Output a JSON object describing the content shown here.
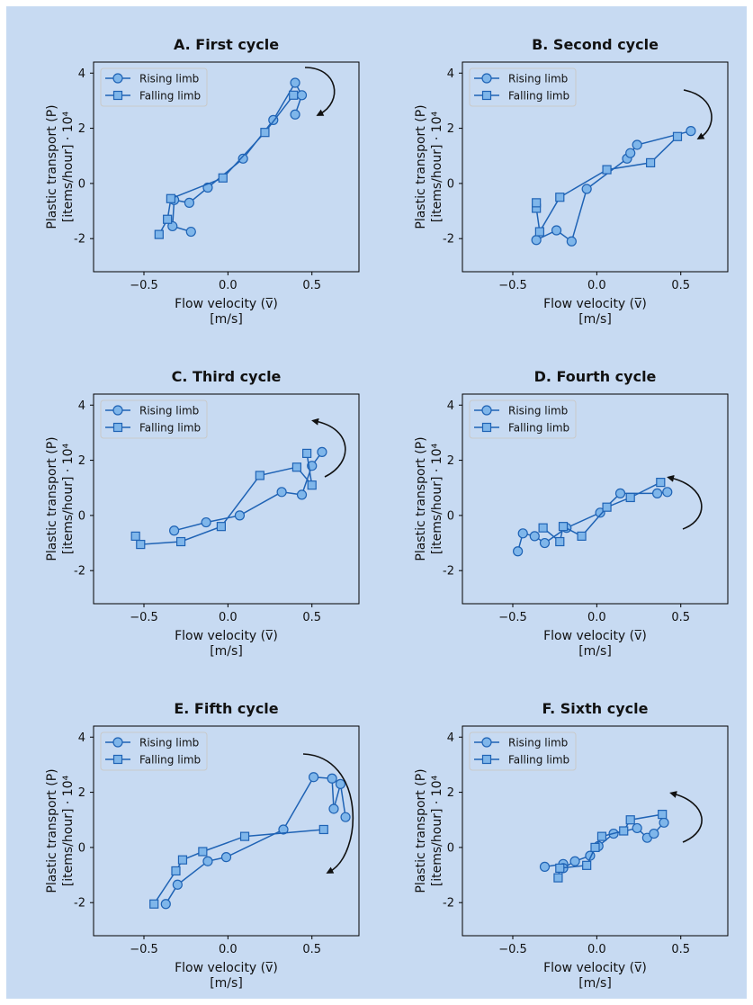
{
  "figure_background": "#c7daf2",
  "line_color": "#1f63b5",
  "marker_fill": "#7fb6ea",
  "arrow_color": "#111111",
  "chart_data": [
    {
      "type": "scatter",
      "title": "A. First cycle",
      "xlabel_line1": "Flow velocity (v̅)",
      "xlabel_line2": "[m/s]",
      "ylabel_line1": "Plastic transport (P)",
      "ylabel_line2": "[items/hour] · 10⁴",
      "xlim": [
        -0.8,
        0.78
      ],
      "ylim": [
        -3.2,
        4.4
      ],
      "xticks": [
        -0.5,
        0.0,
        0.5
      ],
      "xtick_labels": [
        "−0.5",
        "0.0",
        "0.5"
      ],
      "yticks": [
        -2,
        0,
        2,
        4
      ],
      "ytick_labels": [
        "-2",
        "0",
        "2",
        "4"
      ],
      "legend_position": "upper-left",
      "arrow": "clockwise",
      "series": [
        {
          "name": "Rising limb",
          "marker": "circle",
          "x": [
            -0.22,
            -0.33,
            -0.32,
            -0.23,
            -0.12,
            0.09,
            0.27,
            0.4,
            0.44,
            0.4
          ],
          "y": [
            -1.75,
            -1.55,
            -0.6,
            -0.7,
            -0.15,
            0.9,
            2.3,
            3.65,
            3.2,
            2.5
          ]
        },
        {
          "name": "Falling limb",
          "marker": "square",
          "x": [
            0.39,
            0.22,
            -0.03,
            -0.34,
            -0.36,
            -0.41
          ],
          "y": [
            3.2,
            1.85,
            0.2,
            -0.55,
            -1.3,
            -1.85
          ]
        }
      ]
    },
    {
      "type": "scatter",
      "title": "B. Second cycle",
      "xlabel_line1": "Flow velocity (v̅)",
      "xlabel_line2": "[m/s]",
      "ylabel_line1": "Plastic transport (P)",
      "ylabel_line2": "[items/hour] · 10⁴",
      "xlim": [
        -0.8,
        0.78
      ],
      "ylim": [
        -3.2,
        4.4
      ],
      "xticks": [
        -0.5,
        0.0,
        0.5
      ],
      "xtick_labels": [
        "−0.5",
        "0.0",
        "0.5"
      ],
      "yticks": [
        -2,
        0,
        2,
        4
      ],
      "ytick_labels": [
        "-2",
        "0",
        "2",
        "4"
      ],
      "legend_position": "upper-left",
      "arrow": "clockwise",
      "series": [
        {
          "name": "Rising limb",
          "marker": "circle",
          "x": [
            -0.36,
            -0.24,
            -0.15,
            -0.06,
            0.18,
            0.2,
            0.24,
            0.56
          ],
          "y": [
            -2.05,
            -1.7,
            -2.1,
            -0.2,
            0.9,
            1.1,
            1.4,
            1.9
          ]
        },
        {
          "name": "Falling limb",
          "marker": "square",
          "x": [
            0.48,
            0.32,
            0.06,
            -0.22,
            -0.34,
            -0.36,
            -0.36
          ],
          "y": [
            1.7,
            0.75,
            0.5,
            -0.5,
            -1.75,
            -0.9,
            -0.7
          ]
        }
      ]
    },
    {
      "type": "scatter",
      "title": "C. Third cycle",
      "xlabel_line1": "Flow velocity (v̅)",
      "xlabel_line2": "[m/s]",
      "ylabel_line1": "Plastic transport (P)",
      "ylabel_line2": "[items/hour] · 10⁴",
      "xlim": [
        -0.8,
        0.78
      ],
      "ylim": [
        -3.2,
        4.4
      ],
      "xticks": [
        -0.5,
        0.0,
        0.5
      ],
      "xtick_labels": [
        "−0.5",
        "0.0",
        "0.5"
      ],
      "yticks": [
        -2,
        0,
        2,
        4
      ],
      "ytick_labels": [
        "-2",
        "0",
        "2",
        "4"
      ],
      "legend_position": "upper-left",
      "arrow": "counterclockwise",
      "series": [
        {
          "name": "Rising limb",
          "marker": "circle",
          "x": [
            -0.32,
            -0.13,
            0.07,
            0.32,
            0.44,
            0.5,
            0.56
          ],
          "y": [
            -0.55,
            -0.25,
            0.0,
            0.85,
            0.75,
            1.8,
            2.3
          ]
        },
        {
          "name": "Falling limb",
          "marker": "square",
          "x": [
            0.47,
            0.5,
            0.41,
            0.19,
            -0.04,
            -0.28,
            -0.52,
            -0.55
          ],
          "y": [
            2.25,
            1.1,
            1.75,
            1.45,
            -0.4,
            -0.95,
            -1.05,
            -0.75
          ]
        }
      ]
    },
    {
      "type": "scatter",
      "title": "D. Fourth cycle",
      "xlabel_line1": "Flow velocity (v̅)",
      "xlabel_line2": "[m/s]",
      "ylabel_line1": "Plastic transport (P)",
      "ylabel_line2": "[items/hour] · 10⁴",
      "xlim": [
        -0.8,
        0.78
      ],
      "ylim": [
        -3.2,
        4.4
      ],
      "xticks": [
        -0.5,
        0.0,
        0.5
      ],
      "xtick_labels": [
        "−0.5",
        "0.0",
        "0.5"
      ],
      "yticks": [
        -2,
        0,
        2,
        4
      ],
      "ytick_labels": [
        "-2",
        "0",
        "2",
        "4"
      ],
      "legend_position": "upper-left",
      "arrow": "counterclockwise",
      "series": [
        {
          "name": "Rising limb",
          "marker": "circle",
          "x": [
            -0.47,
            -0.44,
            -0.37,
            -0.31,
            -0.18,
            0.02,
            0.14,
            0.36,
            0.42
          ],
          "y": [
            -1.3,
            -0.65,
            -0.75,
            -1.0,
            -0.45,
            0.1,
            0.8,
            0.8,
            0.85
          ]
        },
        {
          "name": "Falling limb",
          "marker": "square",
          "x": [
            0.38,
            0.2,
            0.06,
            -0.09,
            -0.2,
            -0.22,
            -0.32
          ],
          "y": [
            1.2,
            0.65,
            0.3,
            -0.75,
            -0.4,
            -0.95,
            -0.45
          ]
        }
      ]
    },
    {
      "type": "scatter",
      "title": "E. Fifth cycle",
      "xlabel_line1": "Flow velocity (v̅)",
      "xlabel_line2": "[m/s]",
      "ylabel_line1": "Plastic transport (P)",
      "ylabel_line2": "[items/hour] · 10⁴",
      "xlim": [
        -0.8,
        0.78
      ],
      "ylim": [
        -3.2,
        4.4
      ],
      "xticks": [
        -0.5,
        0.0,
        0.5
      ],
      "xtick_labels": [
        "−0.5",
        "0.0",
        "0.5"
      ],
      "yticks": [
        -2,
        0,
        2,
        4
      ],
      "ytick_labels": [
        "-2",
        "0",
        "2",
        "4"
      ],
      "legend_position": "upper-left",
      "arrow": "clockwise",
      "series": [
        {
          "name": "Rising limb",
          "marker": "circle",
          "x": [
            -0.37,
            -0.3,
            -0.12,
            -0.01,
            0.33,
            0.51,
            0.62,
            0.63,
            0.67,
            0.7
          ],
          "y": [
            -2.05,
            -1.35,
            -0.5,
            -0.35,
            0.65,
            2.55,
            2.5,
            1.4,
            2.3,
            1.1
          ]
        },
        {
          "name": "Falling limb",
          "marker": "square",
          "x": [
            0.57,
            0.1,
            -0.15,
            -0.27,
            -0.31,
            -0.44
          ],
          "y": [
            0.65,
            0.4,
            -0.15,
            -0.45,
            -0.85,
            -2.05
          ]
        }
      ]
    },
    {
      "type": "scatter",
      "title": "F. Sixth cycle",
      "xlabel_line1": "Flow velocity (v̅)",
      "xlabel_line2": "[m/s]",
      "ylabel_line1": "Plastic transport (P)",
      "ylabel_line2": "[items/hour] · 10⁴",
      "xlim": [
        -0.8,
        0.78
      ],
      "ylim": [
        -3.2,
        4.4
      ],
      "xticks": [
        -0.5,
        0.0,
        0.5
      ],
      "xtick_labels": [
        "−0.5",
        "0.0",
        "0.5"
      ],
      "yticks": [
        -2,
        0,
        2,
        4
      ],
      "ytick_labels": [
        "-2",
        "0",
        "2",
        "4"
      ],
      "legend_position": "upper-left",
      "arrow": "counterclockwise",
      "series": [
        {
          "name": "Rising limb",
          "marker": "circle",
          "x": [
            -0.31,
            -0.2,
            -0.2,
            -0.13,
            -0.04,
            0.01,
            0.1,
            0.24,
            0.3,
            0.34,
            0.4
          ],
          "y": [
            -0.7,
            -0.6,
            -0.75,
            -0.5,
            -0.3,
            0.05,
            0.5,
            0.7,
            0.35,
            0.5,
            0.9
          ]
        },
        {
          "name": "Falling limb",
          "marker": "square",
          "x": [
            0.39,
            0.2,
            0.16,
            0.03,
            -0.01,
            -0.06,
            -0.22,
            -0.23
          ],
          "y": [
            1.2,
            1.0,
            0.6,
            0.4,
            0.0,
            -0.65,
            -0.75,
            -1.1
          ]
        }
      ]
    }
  ]
}
